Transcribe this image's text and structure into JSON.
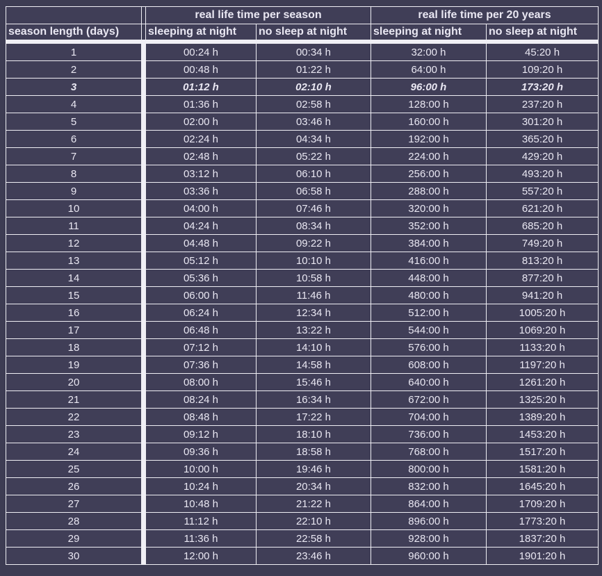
{
  "colors": {
    "background": "#3d3c53",
    "cell_background": "#403e57",
    "grid_line": "#f0eff5",
    "text": "#e9e7f2"
  },
  "chart_data": {
    "type": "table",
    "group_headers": [
      "",
      "real life time per season",
      "real life time per 20 years"
    ],
    "columns": [
      "season length (days)",
      "sleeping at night",
      "no sleep at night",
      "sleeping at night",
      "no sleep at night"
    ],
    "unit": "h",
    "highlighted_row_days": "3",
    "rows": [
      [
        "1",
        "00:24 h",
        "00:34 h",
        "32:00 h",
        "45:20 h"
      ],
      [
        "2",
        "00:48 h",
        "01:22 h",
        "64:00 h",
        "109:20 h"
      ],
      [
        "3",
        "01:12 h",
        "02:10 h",
        "96:00 h",
        "173:20 h"
      ],
      [
        "4",
        "01:36 h",
        "02:58 h",
        "128:00 h",
        "237:20 h"
      ],
      [
        "5",
        "02:00 h",
        "03:46 h",
        "160:00 h",
        "301:20 h"
      ],
      [
        "6",
        "02:24 h",
        "04:34 h",
        "192:00 h",
        "365:20 h"
      ],
      [
        "7",
        "02:48 h",
        "05:22 h",
        "224:00 h",
        "429:20 h"
      ],
      [
        "8",
        "03:12 h",
        "06:10 h",
        "256:00 h",
        "493:20 h"
      ],
      [
        "9",
        "03:36 h",
        "06:58 h",
        "288:00 h",
        "557:20 h"
      ],
      [
        "10",
        "04:00 h",
        "07:46 h",
        "320:00 h",
        "621:20 h"
      ],
      [
        "11",
        "04:24 h",
        "08:34 h",
        "352:00 h",
        "685:20 h"
      ],
      [
        "12",
        "04:48 h",
        "09:22 h",
        "384:00 h",
        "749:20 h"
      ],
      [
        "13",
        "05:12 h",
        "10:10 h",
        "416:00 h",
        "813:20 h"
      ],
      [
        "14",
        "05:36 h",
        "10:58 h",
        "448:00 h",
        "877:20 h"
      ],
      [
        "15",
        "06:00 h",
        "11:46 h",
        "480:00 h",
        "941:20 h"
      ],
      [
        "16",
        "06:24 h",
        "12:34 h",
        "512:00 h",
        "1005:20 h"
      ],
      [
        "17",
        "06:48 h",
        "13:22 h",
        "544:00 h",
        "1069:20 h"
      ],
      [
        "18",
        "07:12 h",
        "14:10 h",
        "576:00 h",
        "1133:20 h"
      ],
      [
        "19",
        "07:36 h",
        "14:58 h",
        "608:00 h",
        "1197:20 h"
      ],
      [
        "20",
        "08:00 h",
        "15:46 h",
        "640:00 h",
        "1261:20 h"
      ],
      [
        "21",
        "08:24 h",
        "16:34 h",
        "672:00 h",
        "1325:20 h"
      ],
      [
        "22",
        "08:48 h",
        "17:22 h",
        "704:00 h",
        "1389:20 h"
      ],
      [
        "23",
        "09:12 h",
        "18:10 h",
        "736:00 h",
        "1453:20 h"
      ],
      [
        "24",
        "09:36 h",
        "18:58 h",
        "768:00 h",
        "1517:20 h"
      ],
      [
        "25",
        "10:00 h",
        "19:46 h",
        "800:00 h",
        "1581:20 h"
      ],
      [
        "26",
        "10:24 h",
        "20:34 h",
        "832:00 h",
        "1645:20 h"
      ],
      [
        "27",
        "10:48 h",
        "21:22 h",
        "864:00 h",
        "1709:20 h"
      ],
      [
        "28",
        "11:12 h",
        "22:10 h",
        "896:00 h",
        "1773:20 h"
      ],
      [
        "29",
        "11:36 h",
        "22:58 h",
        "928:00 h",
        "1837:20 h"
      ],
      [
        "30",
        "12:00 h",
        "23:46 h",
        "960:00 h",
        "1901:20 h"
      ]
    ]
  }
}
